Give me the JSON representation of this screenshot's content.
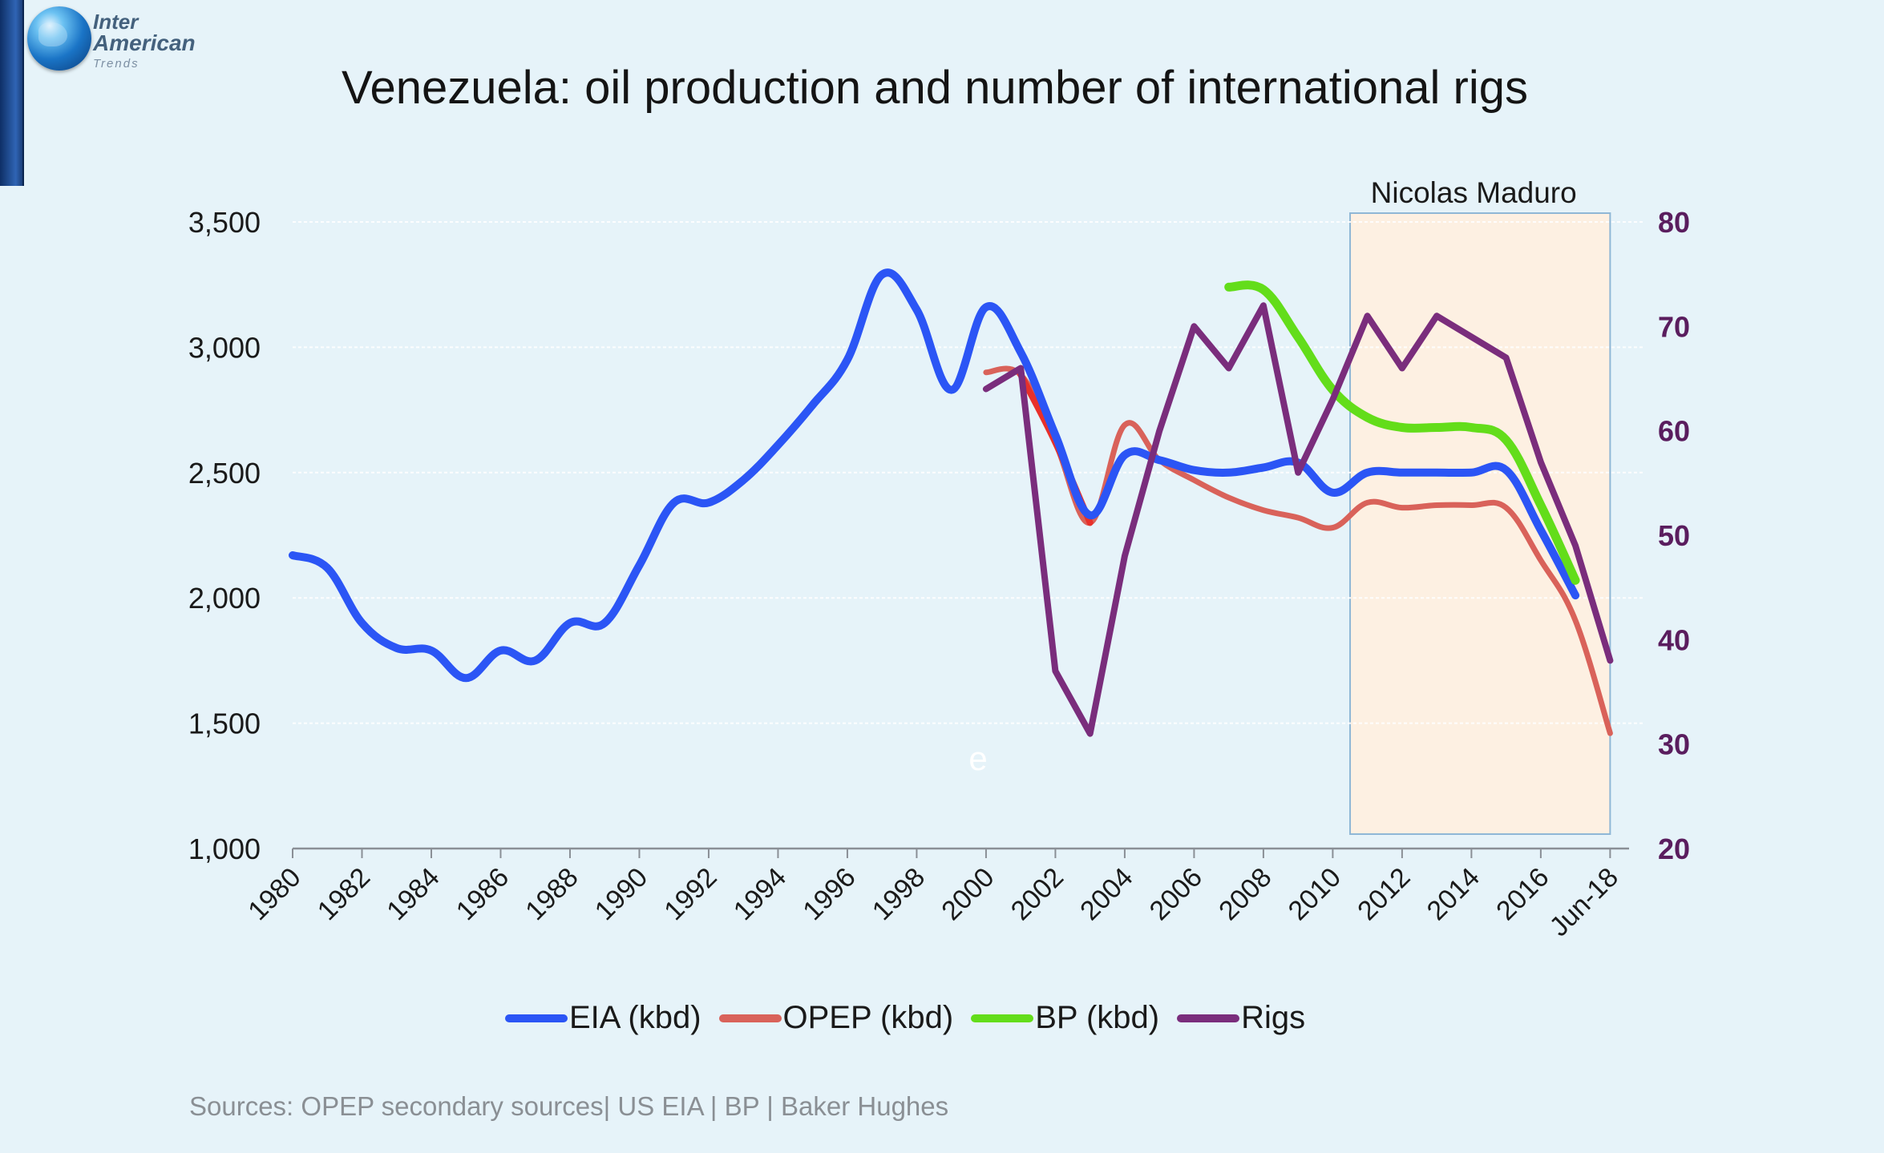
{
  "logo": {
    "line1": "Inter",
    "line2": "American",
    "line3": "Trends"
  },
  "title": "Venezuela: oil production and number of international rigs",
  "source": "Sources: OPEP secondary sources| US EIA | BP | Baker Hughes",
  "colors": {
    "eia": "#2b55f5",
    "opep": "#d9625a",
    "opep_red": "#e8302a",
    "bp": "#63dd1a",
    "rigs": "#7a2d7c",
    "maduro_shade": "#fdf0e2",
    "maduro_border": "#8fb7d6"
  },
  "chart_data": {
    "type": "line",
    "title": "Venezuela: oil production and number of international rigs",
    "x_labels": [
      "1980",
      "1982",
      "1984",
      "1986",
      "1988",
      "1990",
      "1992",
      "1994",
      "1996",
      "1998",
      "2000",
      "2002",
      "2004",
      "2006",
      "2008",
      "2010",
      "2012",
      "2014",
      "2016",
      "Jun-18"
    ],
    "x_positions": [
      1980,
      1982,
      1984,
      1986,
      1988,
      1990,
      1992,
      1994,
      1996,
      1998,
      2000,
      2002,
      2004,
      2006,
      2008,
      2010,
      2012,
      2014,
      2016,
      2018
    ],
    "y_left": {
      "min": 1000,
      "max": 3500,
      "ticks": [
        "1,000",
        "1,500",
        "2,000",
        "2,500",
        "3,000",
        "3,500"
      ],
      "tick_values": [
        1000,
        1500,
        2000,
        2500,
        3000,
        3500
      ]
    },
    "y_right": {
      "min": 20,
      "max": 80,
      "ticks": [
        "20",
        "30",
        "40",
        "50",
        "60",
        "70",
        "80"
      ],
      "tick_values": [
        20,
        30,
        40,
        50,
        60,
        70,
        80
      ]
    },
    "series": [
      {
        "name": "EIA (kbd)",
        "axis": "left",
        "x": [
          1980,
          1981,
          1982,
          1983,
          1984,
          1985,
          1986,
          1987,
          1988,
          1989,
          1990,
          1991,
          1992,
          1993,
          1994,
          1995,
          1996,
          1997,
          1998,
          1999,
          2000,
          2001,
          2002,
          2003,
          2004,
          2005,
          2006,
          2007,
          2008,
          2009,
          2010,
          2011,
          2012,
          2013,
          2014,
          2015,
          2016,
          2017
        ],
        "values": [
          2170,
          2120,
          1900,
          1800,
          1790,
          1680,
          1790,
          1750,
          1900,
          1900,
          2130,
          2380,
          2380,
          2470,
          2610,
          2770,
          2950,
          3290,
          3150,
          2830,
          3160,
          2980,
          2650,
          2330,
          2570,
          2550,
          2510,
          2500,
          2520,
          2540,
          2420,
          2500,
          2500,
          2500,
          2500,
          2510,
          2270,
          2010
        ]
      },
      {
        "name": "OPEP (kbd)",
        "axis": "left",
        "x": [
          2000,
          2001,
          2002,
          2003,
          2004,
          2005,
          2006,
          2007,
          2008,
          2009,
          2010,
          2011,
          2012,
          2013,
          2014,
          2015,
          2016,
          2017,
          2018
        ],
        "values": [
          2900,
          2890,
          2620,
          2300,
          2690,
          2550,
          2470,
          2400,
          2350,
          2320,
          2280,
          2380,
          2360,
          2370,
          2370,
          2360,
          2150,
          1910,
          1460
        ]
      },
      {
        "name": "BP (kbd)",
        "axis": "left",
        "x": [
          2007,
          2008,
          2009,
          2010,
          2011,
          2012,
          2013,
          2014,
          2015,
          2016,
          2017
        ],
        "values": [
          3240,
          3230,
          3040,
          2830,
          2720,
          2680,
          2680,
          2680,
          2630,
          2370,
          2070
        ]
      },
      {
        "name": "Rigs",
        "axis": "right",
        "x": [
          2000,
          2001,
          2002,
          2003,
          2004,
          2005,
          2006,
          2007,
          2008,
          2009,
          2010,
          2011,
          2012,
          2013,
          2014,
          2015,
          2016,
          2017,
          2018
        ],
        "values": [
          64,
          66,
          37,
          31,
          48,
          60,
          70,
          66,
          72,
          56,
          63,
          71,
          66,
          71,
          69,
          67,
          57,
          49,
          38
        ]
      }
    ],
    "annotation": {
      "label": "Nicolas Maduro",
      "x_start": 2010.5,
      "x_end": 2018
    },
    "grid": true,
    "legend_position": "bottom",
    "stray_mark": "e"
  }
}
